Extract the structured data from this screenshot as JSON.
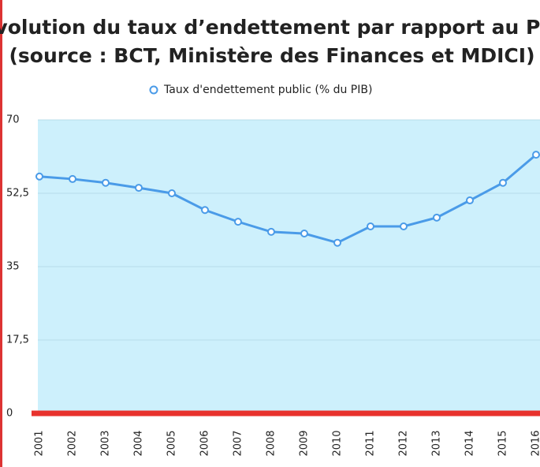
{
  "chart_data": {
    "type": "line",
    "title": "Evolution du taux d’endettement par rapport au PIB",
    "subtitle": "(source : BCT, Ministère des Finances et MDICI)",
    "categories": [
      "2001",
      "2002",
      "2003",
      "2004",
      "2005",
      "2006",
      "2007",
      "2008",
      "2009",
      "2010",
      "2011",
      "2012",
      "2013",
      "2014",
      "2015",
      "2016"
    ],
    "series": [
      {
        "name": "Taux d'endettement public (% du PIB)",
        "color": "#4a9be8",
        "values": [
          56.5,
          55.9,
          55.0,
          53.8,
          52.5,
          48.5,
          45.7,
          43.3,
          42.9,
          40.7,
          44.6,
          44.6,
          46.7,
          50.8,
          55.0,
          61.7
        ]
      }
    ],
    "ylim": [
      0,
      70
    ],
    "yticks": [
      0,
      {
        "value": 17.5,
        "label": "17,5"
      },
      35,
      {
        "value": 52.5,
        "label": "52,5"
      },
      70
    ],
    "grid": true,
    "legend": "top"
  }
}
